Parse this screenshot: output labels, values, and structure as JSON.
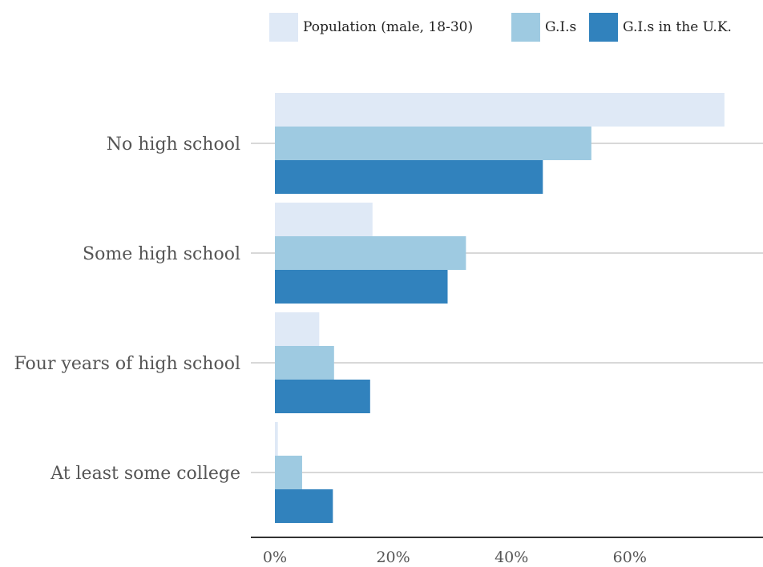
{
  "chart_data": {
    "type": "bar",
    "orientation": "horizontal",
    "categories": [
      "No high school",
      "Some high school",
      "Four years of high school",
      "At least some college"
    ],
    "series": [
      {
        "name": "Population (male, 18-30)",
        "color": "#dfe9f6",
        "values": [
          76,
          16.5,
          7.5,
          0.5
        ]
      },
      {
        "name": "G.I.s",
        "color": "#9ecae1",
        "values": [
          53.5,
          32.3,
          10,
          4.6
        ]
      },
      {
        "name": "G.I.s in the U.K.",
        "color": "#3182bd",
        "values": [
          45.3,
          29.2,
          16.1,
          9.8
        ]
      }
    ],
    "xticks": [
      "0%",
      "20%",
      "40%",
      "60%"
    ],
    "xtick_values": [
      0,
      20,
      40,
      60
    ],
    "xlim": [
      0,
      80
    ],
    "legend_position": "top",
    "grid": "horizontal lines at category centers"
  }
}
